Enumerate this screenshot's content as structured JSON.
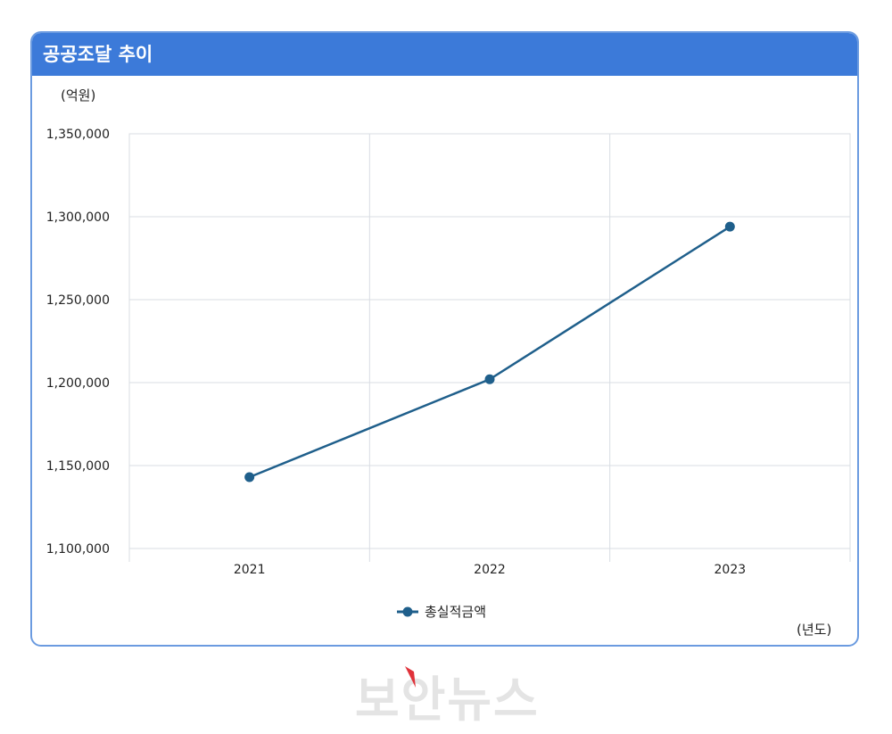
{
  "header": {
    "title": "공공조달 추이"
  },
  "units": {
    "y": "(억원)",
    "x": "(년도)"
  },
  "colors": {
    "header_bg": "#3c7ad9",
    "series": "#1f5f8b",
    "grid": "#d9dde3",
    "card_border": "#6b9be0"
  },
  "chart_data": {
    "type": "line",
    "categories": [
      "2021",
      "2022",
      "2023"
    ],
    "series": [
      {
        "name": "총실적금액",
        "values": [
          1143000,
          1202000,
          1294000
        ]
      }
    ],
    "ylim": [
      1100000,
      1350000
    ],
    "yticks": [
      1100000,
      1150000,
      1200000,
      1250000,
      1300000,
      1350000
    ],
    "ytick_labels": [
      "1,100,000",
      "1,150,000",
      "1,200,000",
      "1,250,000",
      "1,300,000",
      "1,350,000"
    ],
    "grid": true,
    "legend_position": "bottom"
  },
  "watermark": {
    "text": "보안뉴스"
  }
}
